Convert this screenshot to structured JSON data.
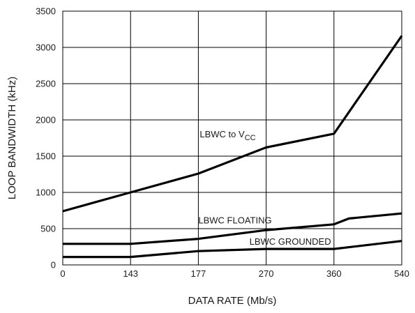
{
  "chart_data": {
    "type": "line",
    "title": "",
    "xlabel": "DATA RATE (Mb/s)",
    "ylabel": "LOOP BANDWIDTH (kHz)",
    "x_tick_labels": [
      "0",
      "143",
      "177",
      "270",
      "360",
      "540"
    ],
    "y_ticks": [
      0,
      500,
      1000,
      1500,
      2000,
      2500,
      3000,
      3500
    ],
    "ylim": [
      0,
      3500
    ],
    "grid": true,
    "series": [
      {
        "name": "LBWC to VCC",
        "x": [
          0,
          143,
          177,
          270,
          360,
          540
        ],
        "y": [
          740,
          1000,
          1260,
          1620,
          1810,
          3160
        ]
      },
      {
        "name": "LBWC FLOATING",
        "x": [
          0,
          143,
          177,
          270,
          360,
          400,
          540
        ],
        "y": [
          290,
          290,
          360,
          480,
          560,
          640,
          710
        ]
      },
      {
        "name": "LBWC GROUNDED",
        "x": [
          0,
          143,
          177,
          270,
          360,
          540
        ],
        "y": [
          110,
          110,
          190,
          220,
          220,
          330
        ]
      }
    ],
    "annotations": [
      {
        "text": "LBWC to V",
        "subscript": "CC",
        "series": "LBWC to VCC"
      },
      {
        "text": "LBWC FLOATING",
        "subscript": "",
        "series": "LBWC FLOATING"
      },
      {
        "text": "LBWC GROUNDED",
        "subscript": "",
        "series": "LBWC GROUNDED"
      }
    ],
    "colors": {
      "line": "#000000",
      "grid": "#000000",
      "axis": "#000000"
    }
  }
}
